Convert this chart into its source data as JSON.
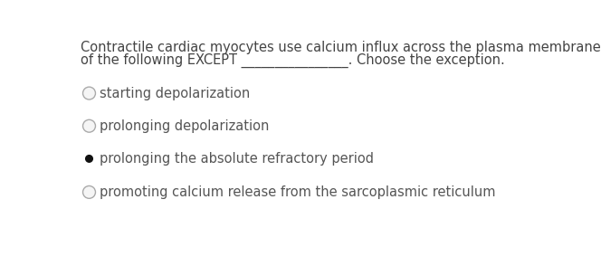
{
  "background_color": "#ffffff",
  "question_text_line1": "Contractile cardiac myocytes use calcium influx across the plasma membrane for all",
  "question_text_line2": "of the following EXCEPT",
  "dashes": "________________",
  "choose_text": ". Choose the exception.",
  "options": [
    "starting depolarization",
    "prolonging depolarization",
    "prolonging the absolute refractory period",
    "promoting calcium release from the sarcoplasmic reticulum"
  ],
  "selected_index": 2,
  "bullet_color": "#111111",
  "text_color": "#444444",
  "option_text_color": "#555555",
  "font_size_question": 10.5,
  "font_size_option": 10.5,
  "radio_edge_color": "#aaaaaa",
  "radio_fill_color": "#f5f5f5"
}
